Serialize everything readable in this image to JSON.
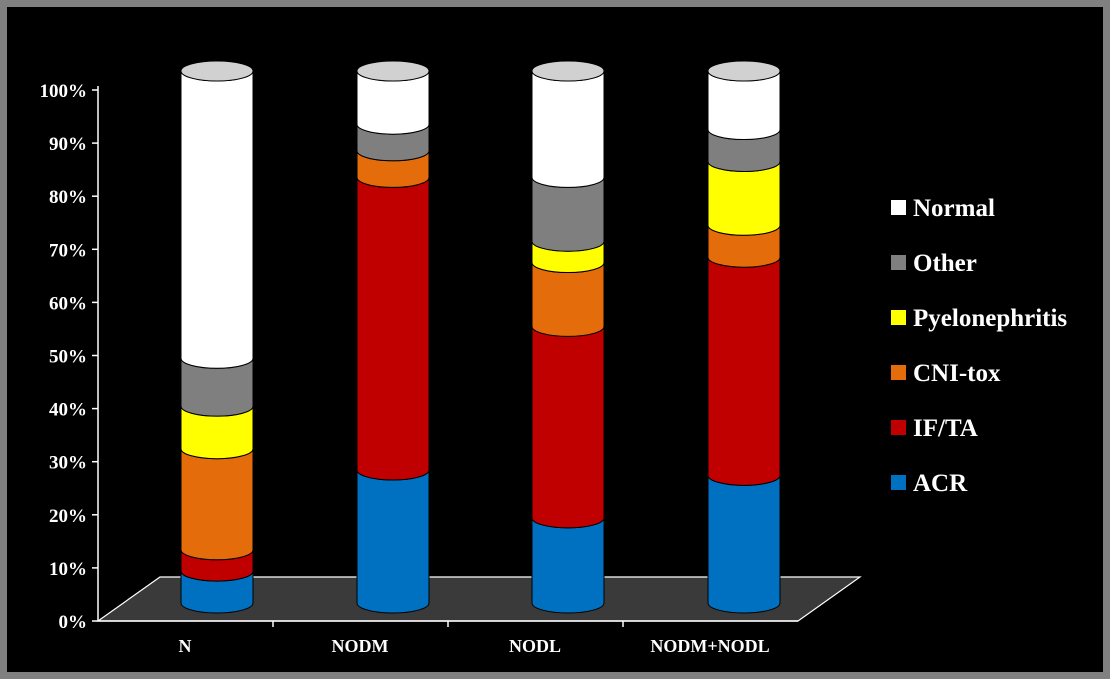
{
  "chart_data": {
    "type": "bar",
    "stacked": true,
    "percent": true,
    "three_d": true,
    "title": "",
    "xlabel": "",
    "ylabel": "",
    "ylim": [
      0,
      100
    ],
    "yticks": [
      "0%",
      "10%",
      "20%",
      "30%",
      "40%",
      "50%",
      "60%",
      "70%",
      "80%",
      "90%",
      "100%"
    ],
    "categories": [
      "N",
      "NODM",
      "NODL",
      "NODM+NODL"
    ],
    "series": [
      {
        "name": "ACR",
        "color": "#0070C0",
        "values": [
          6,
          25,
          16,
          24
        ]
      },
      {
        "name": "IF/TA",
        "color": "#C00000",
        "values": [
          4,
          55,
          36,
          41
        ]
      },
      {
        "name": "CNI-tox",
        "color": "#E46C0A",
        "values": [
          19,
          5,
          12,
          6
        ]
      },
      {
        "name": "Pyelonephritis",
        "color": "#FFFF00",
        "values": [
          8,
          0,
          4,
          12
        ]
      },
      {
        "name": "Other",
        "color": "#7F7F7F",
        "values": [
          9,
          5,
          12,
          6
        ]
      },
      {
        "name": "Normal",
        "color": "#FFFFFF",
        "values": [
          54,
          10,
          20,
          11
        ]
      }
    ],
    "legend_order": [
      "Normal",
      "Other",
      "Pyelonephritis",
      "CNI-tox",
      "IF/TA",
      "ACR"
    ],
    "legend_position": "right",
    "grid": false,
    "floor_color": "#3a3a3a"
  }
}
